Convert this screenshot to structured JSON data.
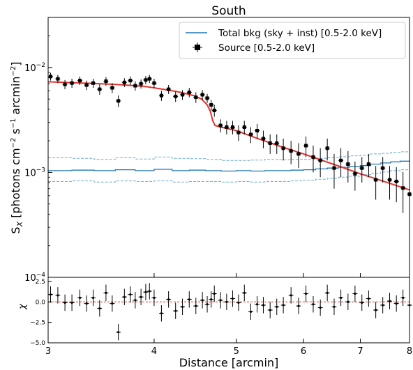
{
  "chart_data": [
    {
      "type": "scatter",
      "title": "South",
      "ylabel": "S_X [photons cm^-2 s^-1 arcmin^-2]",
      "xlabel": "",
      "x_scale": "log",
      "y_scale": "log",
      "xlim": [
        3,
        8
      ],
      "ylim": [
        0.0001,
        0.03
      ],
      "y_ticks": [
        0.0001,
        0.001,
        0.01
      ],
      "y_tick_labels": [
        "10^-4",
        "10^-3",
        "10^-2"
      ],
      "legend": {
        "placement": "top-right",
        "entries": [
          "Total bkg (sky + inst) [0.5-2.0 keV]",
          "Source [0.5-2.0 keV]"
        ]
      },
      "colors": {
        "model": "#e8322c",
        "background": "#1f77b4",
        "background_band": "#6baed6",
        "points": "#000000"
      },
      "series": [
        {
          "name": "Source [0.5-2.0 keV]",
          "kind": "points",
          "x": [
            3.02,
            3.08,
            3.14,
            3.2,
            3.27,
            3.33,
            3.39,
            3.45,
            3.51,
            3.57,
            3.63,
            3.69,
            3.75,
            3.8,
            3.86,
            3.91,
            3.95,
            4.0,
            4.08,
            4.16,
            4.24,
            4.32,
            4.4,
            4.48,
            4.56,
            4.62,
            4.67,
            4.71,
            4.79,
            4.87,
            4.95,
            5.03,
            5.11,
            5.2,
            5.29,
            5.38,
            5.48,
            5.58,
            5.68,
            5.8,
            5.92,
            6.04,
            6.16,
            6.28,
            6.4,
            6.52,
            6.64,
            6.77,
            6.9,
            7.03,
            7.16,
            7.3,
            7.44,
            7.58,
            7.72,
            7.86,
            8.0
          ],
          "y": [
            0.0082,
            0.0078,
            0.0069,
            0.0071,
            0.0075,
            0.0068,
            0.0071,
            0.0062,
            0.0074,
            0.0064,
            0.0048,
            0.0072,
            0.0075,
            0.0067,
            0.007,
            0.0076,
            0.0078,
            0.0071,
            0.0054,
            0.0062,
            0.0053,
            0.0055,
            0.0058,
            0.0052,
            0.0055,
            0.0051,
            0.0044,
            0.0039,
            0.0028,
            0.0027,
            0.0027,
            0.0024,
            0.0027,
            0.0023,
            0.0025,
            0.0021,
            0.0019,
            0.0019,
            0.0017,
            0.0016,
            0.0015,
            0.0018,
            0.0014,
            0.0013,
            0.0017,
            0.0011,
            0.0013,
            0.0012,
            0.00097,
            0.0011,
            0.0012,
            0.00085,
            0.0011,
            0.00085,
            0.00082,
            0.00071,
            0.00062
          ],
          "y_err": [
            0.0007,
            0.0007,
            0.0007,
            0.0007,
            0.0007,
            0.0007,
            0.0007,
            0.0007,
            0.0007,
            0.0007,
            0.0006,
            0.0007,
            0.0007,
            0.0007,
            0.0007,
            0.0007,
            0.0007,
            0.0007,
            0.0006,
            0.0006,
            0.0006,
            0.0006,
            0.0006,
            0.0006,
            0.0006,
            0.0005,
            0.0005,
            0.0005,
            0.0004,
            0.0004,
            0.0004,
            0.0004,
            0.0004,
            0.0004,
            0.0004,
            0.0004,
            0.0004,
            0.0004,
            0.0004,
            0.0004,
            0.0004,
            0.0004,
            0.0004,
            0.0004,
            0.0004,
            0.0004,
            0.0004,
            0.0004,
            0.0003,
            0.0003,
            0.0003,
            0.0003,
            0.0003,
            0.0003,
            0.0003,
            0.0003,
            0.00025
          ]
        },
        {
          "name": "model",
          "kind": "line",
          "x": [
            3.0,
            3.3,
            3.6,
            3.9,
            4.1,
            4.3,
            4.45,
            4.55,
            4.62,
            4.66,
            4.69,
            4.72,
            4.8,
            5.0,
            5.3,
            5.6,
            6.0,
            6.5,
            7.0,
            7.5,
            8.0
          ],
          "y": [
            0.0073,
            0.0071,
            0.0069,
            0.0066,
            0.0062,
            0.0058,
            0.0054,
            0.005,
            0.0044,
            0.0038,
            0.0031,
            0.0028,
            0.0027,
            0.0025,
            0.0021,
            0.0018,
            0.0015,
            0.0012,
            0.00097,
            0.00081,
            0.00068
          ]
        },
        {
          "name": "Total bkg (sky + inst) [0.5-2.0 keV]",
          "kind": "step",
          "x": [
            3.0,
            3.2,
            3.4,
            3.6,
            3.8,
            4.0,
            4.2,
            4.4,
            4.6,
            4.8,
            5.0,
            5.2,
            5.4,
            5.6,
            5.8,
            6.0,
            6.2,
            6.4,
            6.6,
            6.8,
            7.0,
            7.2,
            7.4,
            7.6,
            7.8,
            8.0
          ],
          "y": [
            0.00104,
            0.00105,
            0.00104,
            0.00106,
            0.00104,
            0.00107,
            0.00104,
            0.00105,
            0.00104,
            0.00103,
            0.00104,
            0.00103,
            0.00104,
            0.00104,
            0.00105,
            0.00106,
            0.00108,
            0.0011,
            0.00112,
            0.00114,
            0.00116,
            0.0012,
            0.00123,
            0.00126,
            0.00128,
            0.0013
          ],
          "y_upper": [
            0.00138,
            0.00136,
            0.00133,
            0.00138,
            0.00134,
            0.0014,
            0.00136,
            0.00135,
            0.00133,
            0.0013,
            0.0013,
            0.00131,
            0.00133,
            0.00132,
            0.00133,
            0.00133,
            0.00136,
            0.00138,
            0.00141,
            0.00144,
            0.00146,
            0.0015,
            0.00152,
            0.00155,
            0.00157,
            0.00158
          ],
          "y_lower": [
            0.00082,
            0.00083,
            0.00081,
            0.00083,
            0.00082,
            0.00083,
            0.00081,
            0.00082,
            0.00082,
            0.00081,
            0.00082,
            0.00081,
            0.00082,
            0.00082,
            0.00083,
            0.00084,
            0.00086,
            0.00088,
            0.0009,
            0.00092,
            0.00095,
            0.00098,
            0.00101,
            0.00104,
            0.00106,
            0.00108
          ]
        }
      ]
    },
    {
      "type": "scatter",
      "title": "",
      "xlabel": "Distance [arcmin]",
      "ylabel": "χ",
      "x_scale": "log",
      "xlim": [
        3,
        8
      ],
      "ylim": [
        -5.0,
        3.0
      ],
      "x_ticks": [
        3,
        4,
        5,
        6,
        7,
        8
      ],
      "x_tick_labels": [
        "3",
        "4",
        "5",
        "6",
        "7",
        "8"
      ],
      "y_ticks": [
        -5.0,
        -2.5,
        0.0,
        2.5
      ],
      "y_tick_labels": [
        "−5.0",
        "−2.5",
        "0.0",
        "2.5"
      ],
      "reference_line": 0,
      "series": [
        {
          "name": "residuals",
          "x": [
            3.02,
            3.08,
            3.14,
            3.2,
            3.27,
            3.33,
            3.39,
            3.45,
            3.51,
            3.57,
            3.63,
            3.69,
            3.75,
            3.8,
            3.86,
            3.91,
            3.95,
            4.0,
            4.08,
            4.16,
            4.24,
            4.32,
            4.4,
            4.48,
            4.56,
            4.62,
            4.67,
            4.71,
            4.79,
            4.87,
            4.95,
            5.03,
            5.11,
            5.2,
            5.29,
            5.38,
            5.48,
            5.58,
            5.68,
            5.8,
            5.92,
            6.04,
            6.16,
            6.28,
            6.4,
            6.52,
            6.64,
            6.77,
            6.9,
            7.03,
            7.16,
            7.3,
            7.44,
            7.58,
            7.72,
            7.86,
            8.0
          ],
          "y": [
            0.9,
            0.8,
            -0.1,
            -0.1,
            0.5,
            -0.2,
            0.5,
            -0.8,
            1.1,
            -0.2,
            -3.7,
            0.6,
            0.9,
            0.2,
            0.6,
            1.2,
            1.3,
            0.5,
            -1.4,
            0.3,
            -1.1,
            -0.6,
            0.3,
            -0.5,
            0.2,
            -0.3,
            0.3,
            1.0,
            0.2,
            0.0,
            0.4,
            -0.1,
            1.1,
            -1.2,
            -0.3,
            -0.4,
            -1.0,
            -0.6,
            -0.4,
            0.8,
            -0.5,
            1.0,
            -0.3,
            -0.7,
            1.1,
            -0.6,
            0.5,
            0.0,
            1.0,
            -0.1,
            0.4,
            -1.0,
            -0.4,
            0.1,
            -0.2,
            0.5,
            -0.4
          ],
          "y_err": 1.0
        }
      ]
    }
  ]
}
